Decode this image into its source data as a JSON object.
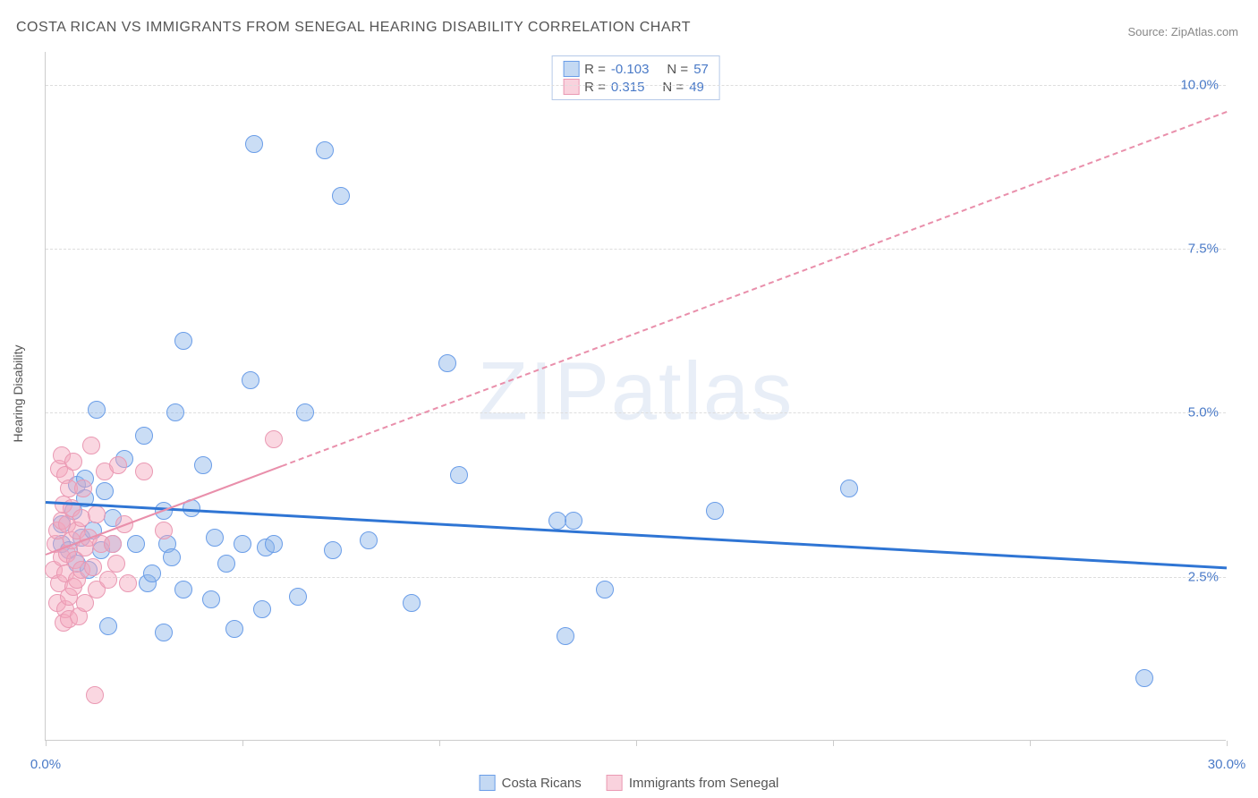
{
  "title": "COSTA RICAN VS IMMIGRANTS FROM SENEGAL HEARING DISABILITY CORRELATION CHART",
  "source": "Source: ZipAtlas.com",
  "watermark": "ZIPatlas",
  "chart": {
    "type": "scatter",
    "y_axis_label": "Hearing Disability",
    "xlim": [
      0,
      30
    ],
    "ylim": [
      0,
      10.5
    ],
    "x_ticks": [
      0,
      5,
      10,
      15,
      20,
      25,
      30
    ],
    "x_tick_labels": {
      "0": "0.0%",
      "30": "30.0%"
    },
    "y_gridlines": [
      2.5,
      5.0,
      7.5,
      10.0
    ],
    "y_tick_labels": {
      "2.5": "2.5%",
      "5.0": "5.0%",
      "7.5": "7.5%",
      "10.0": "10.0%"
    },
    "background_color": "#ffffff",
    "grid_color": "#dddddd",
    "axis_color": "#cccccc",
    "tick_label_color": "#4a7ac7",
    "series": [
      {
        "name": "Costa Ricans",
        "fill_color": "rgba(138,179,232,0.45)",
        "stroke_color": "#6a9de8",
        "marker_radius": 10,
        "r": "-0.103",
        "n": "57",
        "trend": {
          "color": "#2f75d4",
          "width": 3,
          "style": "solid",
          "y_at_x0": 3.65,
          "y_at_x30": 2.65
        },
        "points": [
          [
            0.4,
            3.0
          ],
          [
            0.4,
            3.3
          ],
          [
            0.6,
            2.9
          ],
          [
            0.7,
            3.5
          ],
          [
            0.8,
            2.7
          ],
          [
            0.8,
            3.9
          ],
          [
            0.9,
            3.1
          ],
          [
            1.0,
            3.7
          ],
          [
            1.0,
            4.0
          ],
          [
            1.1,
            2.6
          ],
          [
            1.2,
            3.2
          ],
          [
            1.3,
            5.05
          ],
          [
            1.4,
            2.9
          ],
          [
            1.5,
            3.8
          ],
          [
            1.6,
            1.75
          ],
          [
            1.7,
            3.4
          ],
          [
            1.7,
            3.0
          ],
          [
            2.0,
            4.3
          ],
          [
            2.3,
            3.0
          ],
          [
            2.5,
            4.65
          ],
          [
            2.6,
            2.4
          ],
          [
            2.7,
            2.55
          ],
          [
            3.0,
            1.65
          ],
          [
            3.0,
            3.5
          ],
          [
            3.1,
            3.0
          ],
          [
            3.2,
            2.8
          ],
          [
            3.3,
            5.0
          ],
          [
            3.5,
            6.1
          ],
          [
            3.5,
            2.3
          ],
          [
            3.7,
            3.55
          ],
          [
            4.0,
            4.2
          ],
          [
            4.2,
            2.15
          ],
          [
            4.3,
            3.1
          ],
          [
            4.6,
            2.7
          ],
          [
            4.8,
            1.7
          ],
          [
            5.0,
            3.0
          ],
          [
            5.2,
            5.5
          ],
          [
            5.3,
            9.1
          ],
          [
            5.5,
            2.0
          ],
          [
            5.6,
            2.95
          ],
          [
            5.8,
            3.0
          ],
          [
            6.4,
            2.2
          ],
          [
            6.6,
            5.0
          ],
          [
            7.1,
            9.0
          ],
          [
            7.3,
            2.9
          ],
          [
            7.5,
            8.3
          ],
          [
            8.2,
            3.05
          ],
          [
            9.3,
            2.1
          ],
          [
            10.2,
            5.75
          ],
          [
            10.5,
            4.05
          ],
          [
            13.2,
            1.6
          ],
          [
            13.4,
            3.35
          ],
          [
            14.2,
            2.3
          ],
          [
            17.0,
            3.5
          ],
          [
            20.4,
            3.85
          ],
          [
            27.9,
            0.95
          ],
          [
            13.0,
            3.35
          ]
        ]
      },
      {
        "name": "Immigrants from Senegal",
        "fill_color": "rgba(244,166,188,0.45)",
        "stroke_color": "#ea99b3",
        "marker_radius": 10,
        "r": "0.315",
        "n": "49",
        "trend": {
          "color": "#e98fab",
          "width": 2,
          "style_solid_until_x": 6.0,
          "style": "dashed",
          "y_at_x0": 2.85,
          "y_at_x30": 9.6
        },
        "points": [
          [
            0.2,
            2.6
          ],
          [
            0.25,
            3.0
          ],
          [
            0.3,
            2.1
          ],
          [
            0.3,
            3.2
          ],
          [
            0.35,
            2.4
          ],
          [
            0.35,
            4.15
          ],
          [
            0.4,
            2.8
          ],
          [
            0.4,
            3.35
          ],
          [
            0.4,
            4.35
          ],
          [
            0.45,
            1.8
          ],
          [
            0.45,
            3.6
          ],
          [
            0.5,
            2.55
          ],
          [
            0.5,
            4.05
          ],
          [
            0.5,
            2.0
          ],
          [
            0.55,
            3.3
          ],
          [
            0.55,
            2.85
          ],
          [
            0.6,
            3.85
          ],
          [
            0.6,
            2.2
          ],
          [
            0.6,
            1.85
          ],
          [
            0.65,
            3.05
          ],
          [
            0.65,
            3.55
          ],
          [
            0.7,
            2.35
          ],
          [
            0.7,
            4.25
          ],
          [
            0.75,
            2.75
          ],
          [
            0.8,
            3.2
          ],
          [
            0.8,
            2.45
          ],
          [
            0.85,
            1.9
          ],
          [
            0.9,
            3.4
          ],
          [
            0.9,
            2.6
          ],
          [
            0.95,
            3.85
          ],
          [
            1.0,
            2.95
          ],
          [
            1.0,
            2.1
          ],
          [
            1.1,
            3.1
          ],
          [
            1.15,
            4.5
          ],
          [
            1.2,
            2.65
          ],
          [
            1.3,
            2.3
          ],
          [
            1.3,
            3.45
          ],
          [
            1.4,
            3.0
          ],
          [
            1.5,
            4.1
          ],
          [
            1.6,
            2.45
          ],
          [
            1.7,
            3.0
          ],
          [
            1.8,
            2.7
          ],
          [
            1.85,
            4.2
          ],
          [
            2.0,
            3.3
          ],
          [
            2.1,
            2.4
          ],
          [
            1.25,
            0.7
          ],
          [
            2.5,
            4.1
          ],
          [
            3.0,
            3.2
          ],
          [
            5.8,
            4.6
          ]
        ]
      }
    ]
  },
  "stats_legend": {
    "rows": [
      {
        "swatch_fill": "rgba(138,179,232,0.5)",
        "swatch_stroke": "#6a9de8",
        "r_label": "R =",
        "r_val": "-0.103",
        "n_label": "N =",
        "n_val": "57"
      },
      {
        "swatch_fill": "rgba(244,166,188,0.5)",
        "swatch_stroke": "#ea99b3",
        "r_label": "R =",
        "r_val": "0.315",
        "n_label": "N =",
        "n_val": "49"
      }
    ]
  },
  "bottom_legend": [
    {
      "swatch_fill": "rgba(138,179,232,0.5)",
      "swatch_stroke": "#6a9de8",
      "label": "Costa Ricans"
    },
    {
      "swatch_fill": "rgba(244,166,188,0.5)",
      "swatch_stroke": "#ea99b3",
      "label": "Immigrants from Senegal"
    }
  ]
}
